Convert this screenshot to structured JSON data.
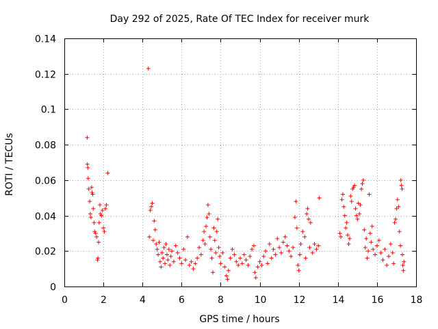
{
  "chart_data": {
    "type": "scatter",
    "title": "Day 292 of 2025, Rate Of TEC Index for receiver murk",
    "xlabel": "GPS time / hours",
    "ylabel": "ROTI / TECUs",
    "xlim": [
      0,
      18
    ],
    "ylim": [
      0,
      0.14
    ],
    "x_ticks": [
      "0",
      "2",
      "4",
      "6",
      "8",
      "10",
      "12",
      "14",
      "16",
      "18"
    ],
    "y_ticks": [
      "0",
      "0.02",
      "0.04",
      "0.06",
      "0.08",
      "0.1",
      "0.12",
      "0.14"
    ],
    "grid": true,
    "marker": "+",
    "color": "#ff0000",
    "series": [
      {
        "points": [
          [
            1.17,
            0.084
          ],
          [
            1.18,
            0.069
          ],
          [
            1.2,
            0.067
          ],
          [
            1.22,
            0.061
          ],
          [
            1.25,
            0.055
          ],
          [
            1.3,
            0.048
          ],
          [
            1.33,
            0.041
          ],
          [
            1.36,
            0.039
          ],
          [
            1.4,
            0.056
          ],
          [
            1.42,
            0.053
          ],
          [
            1.45,
            0.052
          ],
          [
            1.48,
            0.044
          ],
          [
            1.52,
            0.036
          ],
          [
            1.55,
            0.031
          ],
          [
            1.6,
            0.03
          ],
          [
            1.65,
            0.028
          ],
          [
            1.7,
            0.015
          ],
          [
            1.72,
            0.016
          ],
          [
            1.75,
            0.025
          ],
          [
            1.78,
            0.036
          ],
          [
            1.82,
            0.046
          ],
          [
            1.85,
            0.041
          ],
          [
            1.9,
            0.04
          ],
          [
            1.95,
            0.043
          ],
          [
            2.0,
            0.033
          ],
          [
            2.05,
            0.031
          ],
          [
            2.1,
            0.044
          ],
          [
            2.15,
            0.046
          ],
          [
            2.22,
            0.064
          ],
          [
            4.3,
            0.123
          ],
          [
            4.35,
            0.028
          ],
          [
            4.4,
            0.043
          ],
          [
            4.45,
            0.045
          ],
          [
            4.5,
            0.047
          ],
          [
            4.55,
            0.026
          ],
          [
            4.6,
            0.037
          ],
          [
            4.65,
            0.032
          ],
          [
            4.7,
            0.024
          ],
          [
            4.75,
            0.021
          ],
          [
            4.8,
            0.018
          ],
          [
            4.85,
            0.025
          ],
          [
            4.9,
            0.014
          ],
          [
            4.95,
            0.011
          ],
          [
            5.0,
            0.019
          ],
          [
            5.05,
            0.016
          ],
          [
            5.1,
            0.022
          ],
          [
            5.15,
            0.013
          ],
          [
            5.2,
            0.024
          ],
          [
            5.25,
            0.018
          ],
          [
            5.3,
            0.015
          ],
          [
            5.35,
            0.021
          ],
          [
            5.4,
            0.012
          ],
          [
            5.45,
            0.017
          ],
          [
            5.5,
            0.02
          ],
          [
            5.6,
            0.014
          ],
          [
            5.7,
            0.023
          ],
          [
            5.8,
            0.019
          ],
          [
            5.9,
            0.016
          ],
          [
            6.0,
            0.013
          ],
          [
            6.1,
            0.021
          ],
          [
            6.2,
            0.015
          ],
          [
            6.3,
            0.028
          ],
          [
            6.4,
            0.012
          ],
          [
            6.5,
            0.014
          ],
          [
            6.6,
            0.01
          ],
          [
            6.7,
            0.013
          ],
          [
            6.8,
            0.016
          ],
          [
            6.9,
            0.022
          ],
          [
            7.0,
            0.018
          ],
          [
            7.1,
            0.026
          ],
          [
            7.15,
            0.031
          ],
          [
            7.2,
            0.024
          ],
          [
            7.25,
            0.034
          ],
          [
            7.3,
            0.039
          ],
          [
            7.35,
            0.046
          ],
          [
            7.4,
            0.041
          ],
          [
            7.45,
            0.028
          ],
          [
            7.5,
            0.021
          ],
          [
            7.55,
            0.016
          ],
          [
            7.6,
            0.008
          ],
          [
            7.65,
            0.033
          ],
          [
            7.7,
            0.026
          ],
          [
            7.75,
            0.019
          ],
          [
            7.8,
            0.031
          ],
          [
            7.85,
            0.038
          ],
          [
            7.9,
            0.022
          ],
          [
            7.95,
            0.017
          ],
          [
            8.0,
            0.013
          ],
          [
            8.1,
            0.019
          ],
          [
            8.2,
            0.011
          ],
          [
            8.3,
            0.006
          ],
          [
            8.35,
            0.004
          ],
          [
            8.4,
            0.009
          ],
          [
            8.5,
            0.016
          ],
          [
            8.6,
            0.021
          ],
          [
            8.7,
            0.018
          ],
          [
            8.8,
            0.014
          ],
          [
            8.9,
            0.012
          ],
          [
            9.0,
            0.016
          ],
          [
            9.1,
            0.013
          ],
          [
            9.2,
            0.018
          ],
          [
            9.3,
            0.015
          ],
          [
            9.4,
            0.012
          ],
          [
            9.5,
            0.017
          ],
          [
            9.6,
            0.021
          ],
          [
            9.7,
            0.023
          ],
          [
            9.75,
            0.008
          ],
          [
            9.8,
            0.005
          ],
          [
            9.9,
            0.011
          ],
          [
            10.0,
            0.014
          ],
          [
            10.1,
            0.012
          ],
          [
            10.2,
            0.017
          ],
          [
            10.3,
            0.02
          ],
          [
            10.4,
            0.013
          ],
          [
            10.5,
            0.024
          ],
          [
            10.6,
            0.016
          ],
          [
            10.7,
            0.021
          ],
          [
            10.8,
            0.018
          ],
          [
            10.9,
            0.027
          ],
          [
            11.0,
            0.022
          ],
          [
            11.1,
            0.019
          ],
          [
            11.2,
            0.025
          ],
          [
            11.3,
            0.028
          ],
          [
            11.4,
            0.023
          ],
          [
            11.5,
            0.02
          ],
          [
            11.6,
            0.017
          ],
          [
            11.7,
            0.022
          ],
          [
            11.8,
            0.039
          ],
          [
            11.85,
            0.048
          ],
          [
            11.9,
            0.033
          ],
          [
            11.95,
            0.012
          ],
          [
            12.0,
            0.009
          ],
          [
            12.05,
            0.018
          ],
          [
            12.1,
            0.024
          ],
          [
            12.2,
            0.031
          ],
          [
            12.3,
            0.028
          ],
          [
            12.35,
            0.016
          ],
          [
            12.4,
            0.041
          ],
          [
            12.45,
            0.044
          ],
          [
            12.5,
            0.038
          ],
          [
            12.55,
            0.022
          ],
          [
            12.6,
            0.036
          ],
          [
            12.7,
            0.019
          ],
          [
            12.8,
            0.024
          ],
          [
            12.9,
            0.021
          ],
          [
            13.0,
            0.023
          ],
          [
            13.05,
            0.05
          ],
          [
            14.1,
            0.03
          ],
          [
            14.15,
            0.028
          ],
          [
            14.2,
            0.049
          ],
          [
            14.25,
            0.052
          ],
          [
            14.3,
            0.045
          ],
          [
            14.35,
            0.04
          ],
          [
            14.4,
            0.033
          ],
          [
            14.45,
            0.036
          ],
          [
            14.5,
            0.029
          ],
          [
            14.55,
            0.024
          ],
          [
            14.6,
            0.027
          ],
          [
            14.65,
            0.051
          ],
          [
            14.7,
            0.048
          ],
          [
            14.75,
            0.055
          ],
          [
            14.8,
            0.056
          ],
          [
            14.85,
            0.057
          ],
          [
            14.9,
            0.044
          ],
          [
            14.95,
            0.04
          ],
          [
            15.0,
            0.038
          ],
          [
            15.05,
            0.047
          ],
          [
            15.1,
            0.041
          ],
          [
            15.15,
            0.046
          ],
          [
            15.2,
            0.055
          ],
          [
            15.25,
            0.058
          ],
          [
            15.3,
            0.06
          ],
          [
            15.35,
            0.032
          ],
          [
            15.4,
            0.022
          ],
          [
            15.45,
            0.027
          ],
          [
            15.5,
            0.016
          ],
          [
            15.55,
            0.02
          ],
          [
            15.6,
            0.052
          ],
          [
            15.65,
            0.03
          ],
          [
            15.7,
            0.025
          ],
          [
            15.75,
            0.034
          ],
          [
            15.8,
            0.021
          ],
          [
            15.9,
            0.018
          ],
          [
            16.0,
            0.023
          ],
          [
            16.1,
            0.026
          ],
          [
            16.2,
            0.019
          ],
          [
            16.3,
            0.015
          ],
          [
            16.4,
            0.021
          ],
          [
            16.5,
            0.012
          ],
          [
            16.6,
            0.017
          ],
          [
            16.7,
            0.024
          ],
          [
            16.8,
            0.019
          ],
          [
            16.85,
            0.013
          ],
          [
            16.9,
            0.036
          ],
          [
            16.95,
            0.038
          ],
          [
            17.0,
            0.044
          ],
          [
            17.05,
            0.049
          ],
          [
            17.1,
            0.045
          ],
          [
            17.15,
            0.031
          ],
          [
            17.2,
            0.023
          ],
          [
            17.22,
            0.06
          ],
          [
            17.25,
            0.057
          ],
          [
            17.28,
            0.055
          ],
          [
            17.3,
            0.018
          ],
          [
            17.32,
            0.012
          ],
          [
            17.35,
            0.009
          ],
          [
            17.38,
            0.014
          ]
        ]
      }
    ]
  }
}
